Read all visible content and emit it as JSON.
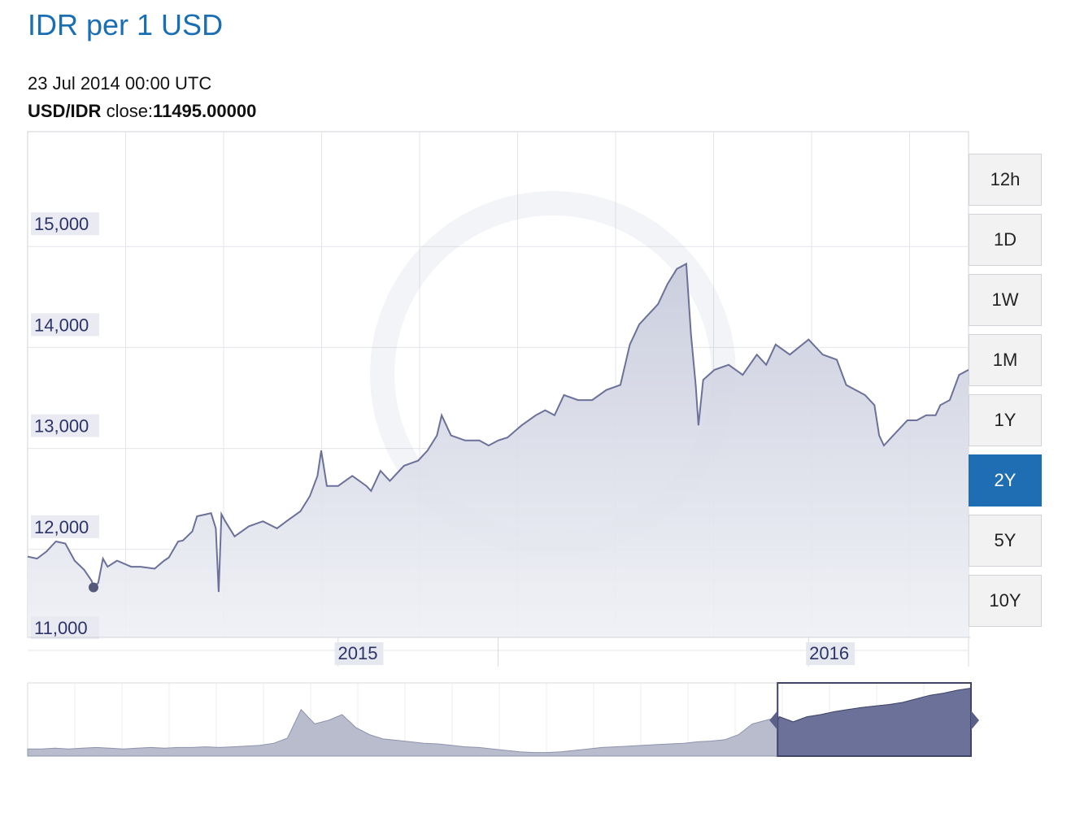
{
  "title": "IDR per 1 USD",
  "tooltip": {
    "date": "23 Jul 2014 00:00 UTC",
    "pair": "USD/IDR",
    "close_label": " close:",
    "close_value": "11495.00000"
  },
  "range_buttons": [
    "12h",
    "1D",
    "1W",
    "1M",
    "1Y",
    "2Y",
    "5Y",
    "10Y"
  ],
  "active_range": "2Y",
  "colors": {
    "accent": "#1f6db3",
    "line": "#6b7199",
    "area": "#dcdfea",
    "navigator_fill": "#6b7199"
  },
  "chart_data": {
    "type": "area",
    "y_ticks": [
      "15,000",
      "14,000",
      "13,000",
      "12,000",
      "11,000"
    ],
    "y_tick_values": [
      15000,
      14000,
      13000,
      12000,
      11000
    ],
    "x_tick_labels": [
      {
        "label": "2015",
        "t": 0.328
      },
      {
        "label": "2016",
        "t": 0.829
      }
    ],
    "ylim": [
      11000,
      16000
    ],
    "grid": true,
    "points": [
      [
        0.0,
        11800
      ],
      [
        0.01,
        11780
      ],
      [
        0.02,
        11850
      ],
      [
        0.03,
        11950
      ],
      [
        0.04,
        11930
      ],
      [
        0.05,
        11760
      ],
      [
        0.06,
        11670
      ],
      [
        0.068,
        11560
      ],
      [
        0.07,
        11495
      ],
      [
        0.075,
        11540
      ],
      [
        0.08,
        11780
      ],
      [
        0.085,
        11700
      ],
      [
        0.095,
        11760
      ],
      [
        0.11,
        11700
      ],
      [
        0.12,
        11700
      ],
      [
        0.135,
        11680
      ],
      [
        0.145,
        11760
      ],
      [
        0.15,
        11790
      ],
      [
        0.16,
        11950
      ],
      [
        0.165,
        11960
      ],
      [
        0.175,
        12050
      ],
      [
        0.18,
        12200
      ],
      [
        0.19,
        12220
      ],
      [
        0.195,
        12230
      ],
      [
        0.2,
        12080
      ],
      [
        0.203,
        11450
      ],
      [
        0.206,
        12220
      ],
      [
        0.21,
        12150
      ],
      [
        0.22,
        12000
      ],
      [
        0.235,
        12100
      ],
      [
        0.25,
        12150
      ],
      [
        0.265,
        12080
      ],
      [
        0.275,
        12150
      ],
      [
        0.29,
        12250
      ],
      [
        0.3,
        12400
      ],
      [
        0.308,
        12600
      ],
      [
        0.312,
        12850
      ],
      [
        0.318,
        12500
      ],
      [
        0.33,
        12500
      ],
      [
        0.345,
        12600
      ],
      [
        0.36,
        12500
      ],
      [
        0.365,
        12450
      ],
      [
        0.375,
        12650
      ],
      [
        0.385,
        12550
      ],
      [
        0.4,
        12700
      ],
      [
        0.415,
        12750
      ],
      [
        0.425,
        12850
      ],
      [
        0.435,
        13000
      ],
      [
        0.44,
        13200
      ],
      [
        0.45,
        13000
      ],
      [
        0.465,
        12950
      ],
      [
        0.48,
        12950
      ],
      [
        0.49,
        12900
      ],
      [
        0.5,
        12950
      ],
      [
        0.51,
        12980
      ],
      [
        0.525,
        13100
      ],
      [
        0.54,
        13200
      ],
      [
        0.55,
        13250
      ],
      [
        0.56,
        13200
      ],
      [
        0.57,
        13400
      ],
      [
        0.585,
        13350
      ],
      [
        0.6,
        13350
      ],
      [
        0.615,
        13450
      ],
      [
        0.63,
        13500
      ],
      [
        0.64,
        13900
      ],
      [
        0.65,
        14100
      ],
      [
        0.66,
        14200
      ],
      [
        0.67,
        14300
      ],
      [
        0.68,
        14500
      ],
      [
        0.69,
        14650
      ],
      [
        0.7,
        14700
      ],
      [
        0.705,
        14000
      ],
      [
        0.71,
        13500
      ],
      [
        0.713,
        13100
      ],
      [
        0.718,
        13550
      ],
      [
        0.73,
        13650
      ],
      [
        0.745,
        13700
      ],
      [
        0.76,
        13600
      ],
      [
        0.775,
        13800
      ],
      [
        0.785,
        13700
      ],
      [
        0.795,
        13900
      ],
      [
        0.81,
        13800
      ],
      [
        0.83,
        13950
      ],
      [
        0.845,
        13800
      ],
      [
        0.86,
        13750
      ],
      [
        0.87,
        13500
      ],
      [
        0.88,
        13450
      ],
      [
        0.89,
        13400
      ],
      [
        0.9,
        13300
      ],
      [
        0.905,
        13000
      ],
      [
        0.91,
        12900
      ],
      [
        0.92,
        13000
      ],
      [
        0.935,
        13150
      ],
      [
        0.945,
        13150
      ],
      [
        0.955,
        13200
      ],
      [
        0.965,
        13200
      ],
      [
        0.97,
        13300
      ],
      [
        0.98,
        13350
      ],
      [
        0.99,
        13600
      ],
      [
        1.0,
        13650
      ]
    ],
    "highlight_point": {
      "date": "23 Jul 2014",
      "value": 11495
    },
    "navigator": {
      "points": [
        0.1,
        0.1,
        0.11,
        0.1,
        0.11,
        0.12,
        0.11,
        0.1,
        0.11,
        0.12,
        0.11,
        0.12,
        0.12,
        0.13,
        0.12,
        0.13,
        0.14,
        0.15,
        0.18,
        0.25,
        0.65,
        0.45,
        0.5,
        0.58,
        0.4,
        0.3,
        0.24,
        0.22,
        0.2,
        0.18,
        0.17,
        0.15,
        0.13,
        0.12,
        0.1,
        0.08,
        0.06,
        0.05,
        0.05,
        0.06,
        0.08,
        0.1,
        0.12,
        0.13,
        0.14,
        0.15,
        0.16,
        0.17,
        0.18,
        0.2,
        0.21,
        0.23,
        0.3,
        0.45,
        0.5,
        0.55,
        0.48,
        0.55,
        0.58,
        0.62,
        0.65,
        0.68,
        0.7,
        0.72,
        0.75,
        0.8,
        0.85,
        0.88,
        0.92,
        0.95
      ],
      "selection_start_fraction": 0.795
    }
  }
}
